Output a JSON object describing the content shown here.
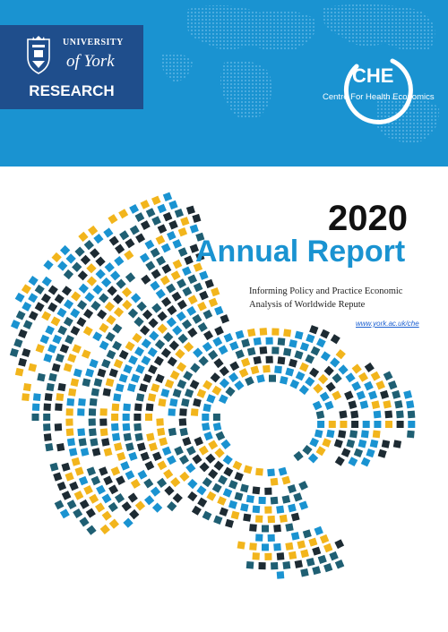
{
  "header": {
    "university_line1": "UNIVERSITY",
    "university_line2": "of York",
    "research_label": "RESEARCH",
    "che_abbrev": "CHE",
    "che_full": "Centre For Health Economics"
  },
  "cover": {
    "year": "2020",
    "title": "Annual Report",
    "subtitle": "Informing Policy and Practice Economic Analysis of Worldwide Repute",
    "link": "www.york.ac.uk/che"
  },
  "colors": {
    "header_blue": "#1a93d1",
    "york_navy": "#1f4e8c",
    "tile_yellow": "#f2b51c",
    "tile_blue": "#1a93d1",
    "tile_teal": "#1f5f73",
    "tile_dark": "#1d2b33"
  }
}
